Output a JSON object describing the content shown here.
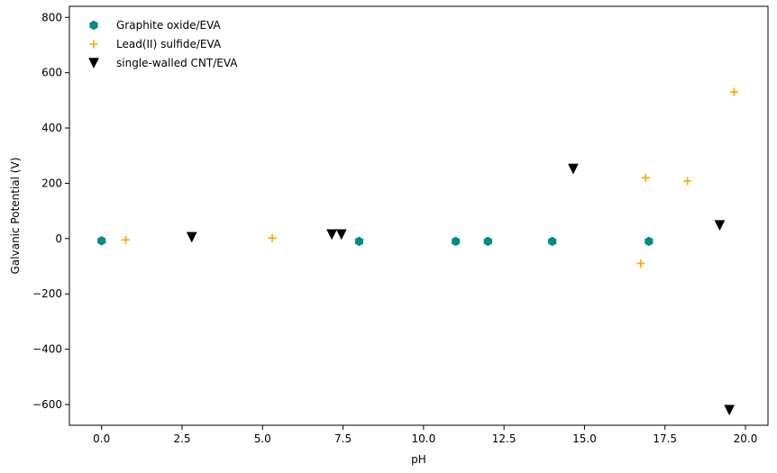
{
  "chart_data": {
    "type": "scatter",
    "xlabel": "pH",
    "ylabel": "Galvanic Potential (V)",
    "xlim": [
      -1.0,
      20.7
    ],
    "ylim": [
      -675,
      840
    ],
    "x_ticks": [
      0.0,
      2.5,
      5.0,
      7.5,
      10.0,
      12.5,
      15.0,
      17.5,
      20.0
    ],
    "x_tick_labels": [
      "0.0",
      "2.5",
      "5.0",
      "7.5",
      "10.0",
      "12.5",
      "15.0",
      "17.5",
      "20.0"
    ],
    "y_ticks": [
      -600,
      -400,
      -200,
      0,
      200,
      400,
      600,
      800
    ],
    "y_tick_labels": [
      "−600",
      "−400",
      "−200",
      "0",
      "200",
      "400",
      "600",
      "800"
    ],
    "grid": false,
    "legend_position": "top-left",
    "series": [
      {
        "name": "Graphite oxide/EVA",
        "marker": "hexagon",
        "color": "#008b8b",
        "points": [
          {
            "x": 0.0,
            "y": -8
          },
          {
            "x": 8.0,
            "y": -10
          },
          {
            "x": 11.0,
            "y": -10
          },
          {
            "x": 12.0,
            "y": -10
          },
          {
            "x": 14.0,
            "y": -10
          },
          {
            "x": 17.0,
            "y": -10
          }
        ]
      },
      {
        "name": "Lead(II) sulfide/EVA",
        "marker": "plus",
        "color": "#ffa500",
        "points": [
          {
            "x": 0.75,
            "y": -5
          },
          {
            "x": 5.3,
            "y": 2
          },
          {
            "x": 16.75,
            "y": -90
          },
          {
            "x": 16.9,
            "y": 220
          },
          {
            "x": 18.2,
            "y": 208
          },
          {
            "x": 19.65,
            "y": 530
          }
        ]
      },
      {
        "name": "single-walled CNT/EVA",
        "marker": "triangle-down",
        "color": "#000000",
        "points": [
          {
            "x": 2.8,
            "y": 5
          },
          {
            "x": 7.15,
            "y": 15
          },
          {
            "x": 7.45,
            "y": 15
          },
          {
            "x": 14.65,
            "y": 252
          },
          {
            "x": 19.2,
            "y": 48
          },
          {
            "x": 19.5,
            "y": -620
          }
        ]
      }
    ]
  }
}
